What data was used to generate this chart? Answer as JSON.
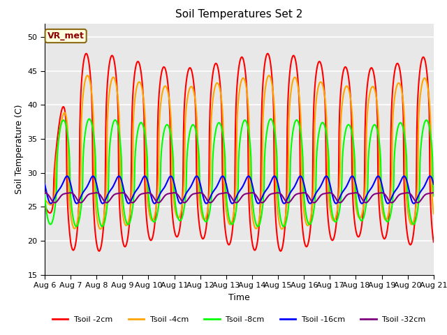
{
  "title": "Soil Temperatures Set 2",
  "xlabel": "Time",
  "ylabel": "Soil Temperature (C)",
  "ylim": [
    15,
    52
  ],
  "yticks": [
    15,
    20,
    25,
    30,
    35,
    40,
    45,
    50
  ],
  "x_tick_labels": [
    "Aug 6",
    "Aug 7",
    "Aug 8",
    "Aug 9",
    "Aug 10",
    "Aug 11",
    "Aug 12",
    "Aug 13",
    "Aug 14",
    "Aug 15",
    "Aug 16",
    "Aug 17",
    "Aug 18",
    "Aug 19",
    "Aug 20",
    "Aug 21"
  ],
  "series_colors": [
    "red",
    "orange",
    "lime",
    "blue",
    "purple"
  ],
  "series_labels": [
    "Tsoil -2cm",
    "Tsoil -4cm",
    "Tsoil -8cm",
    "Tsoil -16cm",
    "Tsoil -32cm"
  ],
  "annotation_text": "VR_met",
  "bg_color": "#e8e8e8",
  "grid_color": "white",
  "figsize": [
    6.4,
    4.8
  ],
  "dpi": 100
}
